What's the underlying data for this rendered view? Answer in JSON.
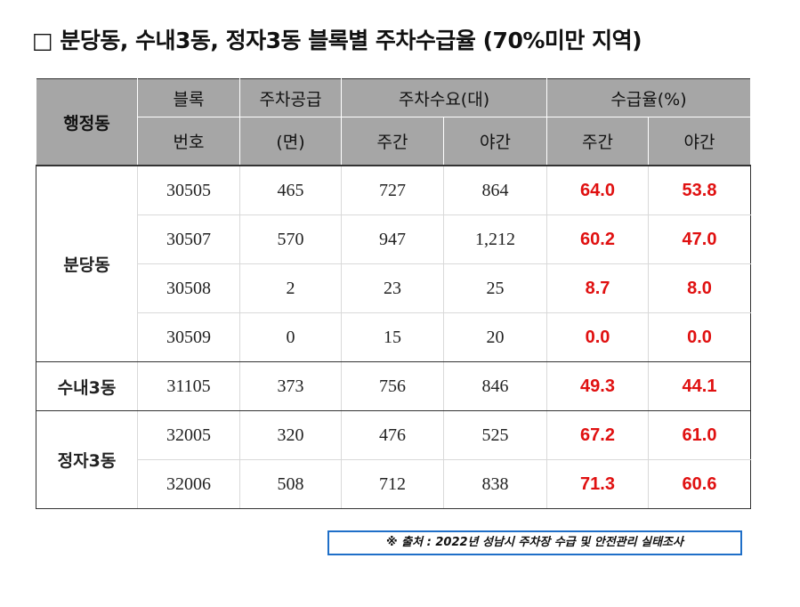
{
  "title": "□ 분당동, 수내3동, 정자3동 블록별 주차수급율 (70%미만 지역)",
  "table": {
    "headers": {
      "district": "행정동",
      "block_line1": "블록",
      "block_line2": "번호",
      "supply_line1": "주차공급",
      "supply_line2": "(면)",
      "demand": "주차수요(대)",
      "ratio": "수급율(%)",
      "day": "주간",
      "night": "야간",
      "day2": "주간",
      "night2": "야간"
    },
    "groups": [
      {
        "district": "분당동",
        "rows": [
          {
            "block": "30505",
            "supply": "465",
            "demand_day": "727",
            "demand_night": "864",
            "ratio_day": "64.0",
            "ratio_night": "53.8"
          },
          {
            "block": "30507",
            "supply": "570",
            "demand_day": "947",
            "demand_night": "1,212",
            "ratio_day": "60.2",
            "ratio_night": "47.0"
          },
          {
            "block": "30508",
            "supply": "2",
            "demand_day": "23",
            "demand_night": "25",
            "ratio_day": "8.7",
            "ratio_night": "8.0"
          },
          {
            "block": "30509",
            "supply": "0",
            "demand_day": "15",
            "demand_night": "20",
            "ratio_day": "0.0",
            "ratio_night": "0.0"
          }
        ]
      },
      {
        "district": "수내3동",
        "rows": [
          {
            "block": "31105",
            "supply": "373",
            "demand_day": "756",
            "demand_night": "846",
            "ratio_day": "49.3",
            "ratio_night": "44.1"
          }
        ]
      },
      {
        "district": "정자3동",
        "rows": [
          {
            "block": "32005",
            "supply": "320",
            "demand_day": "476",
            "demand_night": "525",
            "ratio_day": "67.2",
            "ratio_night": "61.0"
          },
          {
            "block": "32006",
            "supply": "508",
            "demand_day": "712",
            "demand_night": "838",
            "ratio_day": "71.3",
            "ratio_night": "60.6"
          }
        ]
      }
    ]
  },
  "source": "※ 출처 : 2022년 성남시 주차장 수급 및 안전관리 실태조사",
  "colors": {
    "header_bg": "#a6a6a6",
    "ratio_text": "#e01010",
    "source_border": "#1f6fc8"
  }
}
